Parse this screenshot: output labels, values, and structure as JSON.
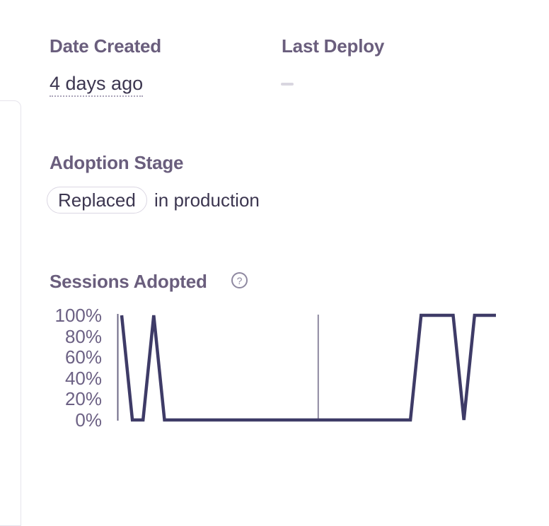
{
  "panel": {
    "fields": [
      {
        "label": "Date Created",
        "value": "4 days ago",
        "value_style": "dotted-underline-tooltip"
      },
      {
        "label": "Last Deploy",
        "value": "",
        "empty_indicator": "dash"
      }
    ],
    "adoption_stage": {
      "label": "Adoption Stage",
      "badge": "Replaced",
      "suffix": "in production"
    },
    "sessions_adopted": {
      "label": "Sessions Adopted",
      "help_icon": "question-mark-circle-icon"
    }
  },
  "colors": {
    "heading": "#6a5e7d",
    "body_text": "#3c3650",
    "chart_line": "#3e3b67",
    "chart_axis": "#6e6886",
    "axis_label": "#6c6184",
    "pill_border": "#dbd7e3",
    "card_border": "#e6e4ec",
    "empty_dash": "#d9d6e0",
    "help_icon": "#8e88a0"
  },
  "chart_data": {
    "type": "line",
    "title": "Sessions Adopted",
    "xlabel": "",
    "ylabel": "",
    "ylim": [
      0,
      100
    ],
    "y_tick_labels": [
      "100%",
      "80%",
      "60%",
      "40%",
      "20%",
      "0%"
    ],
    "x_tick_labels": "none (no x-axis labels shown)",
    "x": [
      0,
      1,
      2,
      3,
      4,
      5,
      6,
      7,
      8,
      9,
      10,
      11,
      12,
      13,
      14,
      15,
      16,
      17,
      18,
      19,
      20,
      21,
      22,
      23,
      24,
      25,
      26,
      27,
      28,
      29,
      30,
      31,
      32,
      33,
      34,
      35
    ],
    "values": [
      100,
      0,
      0,
      100,
      0,
      0,
      0,
      0,
      0,
      0,
      0,
      0,
      0,
      0,
      0,
      0,
      0,
      0,
      0,
      0,
      0,
      0,
      0,
      0,
      0,
      0,
      0,
      0,
      100,
      100,
      100,
      100,
      0,
      100,
      100,
      100
    ],
    "series_name": "Sessions Adopted %",
    "grid": "single vertical gridline",
    "gridline_x_fraction": 0.53,
    "legend_position": "none"
  }
}
